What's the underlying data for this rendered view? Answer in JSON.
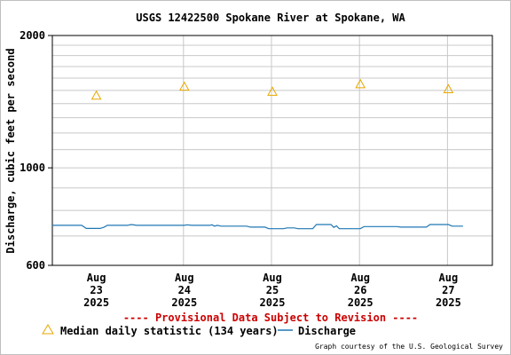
{
  "chart_data": {
    "type": "line",
    "title": "USGS 12422500 Spokane River at Spokane, WA",
    "ylabel": "Discharge, cubic feet per second",
    "xlabel": "",
    "y_scale": "log",
    "ylim": [
      600,
      2000
    ],
    "y_ticks": [
      "600",
      "1000",
      "2000"
    ],
    "x_range": [
      "2025-08-22T12:00",
      "2025-08-27T12:00"
    ],
    "x_ticks": [
      {
        "date": "2025-08-23",
        "lines": [
          "Aug",
          "23",
          "2025"
        ]
      },
      {
        "date": "2025-08-24",
        "lines": [
          "Aug",
          "24",
          "2025"
        ]
      },
      {
        "date": "2025-08-25",
        "lines": [
          "Aug",
          "25",
          "2025"
        ]
      },
      {
        "date": "2025-08-26",
        "lines": [
          "Aug",
          "26",
          "2025"
        ]
      },
      {
        "date": "2025-08-27",
        "lines": [
          "Aug",
          "27",
          "2025"
        ]
      }
    ],
    "grid": true,
    "legend_placement": "bottom",
    "series": [
      {
        "name": "Median daily statistic (134 years)",
        "kind": "marker",
        "color": "#e6a700",
        "points": [
          {
            "x": "2025-08-23",
            "y": 1460
          },
          {
            "x": "2025-08-24",
            "y": 1530
          },
          {
            "x": "2025-08-25",
            "y": 1490
          },
          {
            "x": "2025-08-26",
            "y": 1550
          },
          {
            "x": "2025-08-27",
            "y": 1510
          }
        ]
      },
      {
        "name": "Discharge",
        "kind": "line",
        "color": "#1f77b4",
        "points": [
          {
            "x": "2025-08-22T12:00",
            "y": 740
          },
          {
            "x": "2025-08-22T20:00",
            "y": 740
          },
          {
            "x": "2025-08-22T21:15",
            "y": 728
          },
          {
            "x": "2025-08-23T01:00",
            "y": 728
          },
          {
            "x": "2025-08-23T02:00",
            "y": 732
          },
          {
            "x": "2025-08-23T03:00",
            "y": 740
          },
          {
            "x": "2025-08-23T08:30",
            "y": 740
          },
          {
            "x": "2025-08-23T09:30",
            "y": 743
          },
          {
            "x": "2025-08-23T11:00",
            "y": 740
          },
          {
            "x": "2025-08-24T00:00",
            "y": 740
          },
          {
            "x": "2025-08-24T00:45",
            "y": 742
          },
          {
            "x": "2025-08-24T02:00",
            "y": 740
          },
          {
            "x": "2025-08-24T07:00",
            "y": 740
          },
          {
            "x": "2025-08-24T07:30",
            "y": 742
          },
          {
            "x": "2025-08-24T08:15",
            "y": 737
          },
          {
            "x": "2025-08-24T09:00",
            "y": 740
          },
          {
            "x": "2025-08-24T10:00",
            "y": 737
          },
          {
            "x": "2025-08-24T17:00",
            "y": 737
          },
          {
            "x": "2025-08-24T18:00",
            "y": 733
          },
          {
            "x": "2025-08-24T22:00",
            "y": 733
          },
          {
            "x": "2025-08-24T23:00",
            "y": 727
          },
          {
            "x": "2025-08-25T03:00",
            "y": 727
          },
          {
            "x": "2025-08-25T04:00",
            "y": 730
          },
          {
            "x": "2025-08-25T06:00",
            "y": 730
          },
          {
            "x": "2025-08-25T07:00",
            "y": 727
          },
          {
            "x": "2025-08-25T11:00",
            "y": 727
          },
          {
            "x": "2025-08-25T12:00",
            "y": 743
          },
          {
            "x": "2025-08-25T16:00",
            "y": 743
          },
          {
            "x": "2025-08-25T16:45",
            "y": 732
          },
          {
            "x": "2025-08-25T17:30",
            "y": 738
          },
          {
            "x": "2025-08-25T18:15",
            "y": 727
          },
          {
            "x": "2025-08-26T00:00",
            "y": 727
          },
          {
            "x": "2025-08-26T01:00",
            "y": 735
          },
          {
            "x": "2025-08-26T10:00",
            "y": 735
          },
          {
            "x": "2025-08-26T11:00",
            "y": 733
          },
          {
            "x": "2025-08-26T18:00",
            "y": 733
          },
          {
            "x": "2025-08-26T19:00",
            "y": 743
          },
          {
            "x": "2025-08-27T00:00",
            "y": 743
          },
          {
            "x": "2025-08-27T01:00",
            "y": 737
          },
          {
            "x": "2025-08-27T04:00",
            "y": 737
          }
        ]
      }
    ]
  },
  "notice": "---- Provisional Data Subject to Revision ----",
  "notice_color": "#cc0000",
  "legend": {
    "median_label": "Median daily statistic (134 years)",
    "discharge_label": "Discharge"
  },
  "credit": "Graph courtesy of the U.S. Geological Survey"
}
